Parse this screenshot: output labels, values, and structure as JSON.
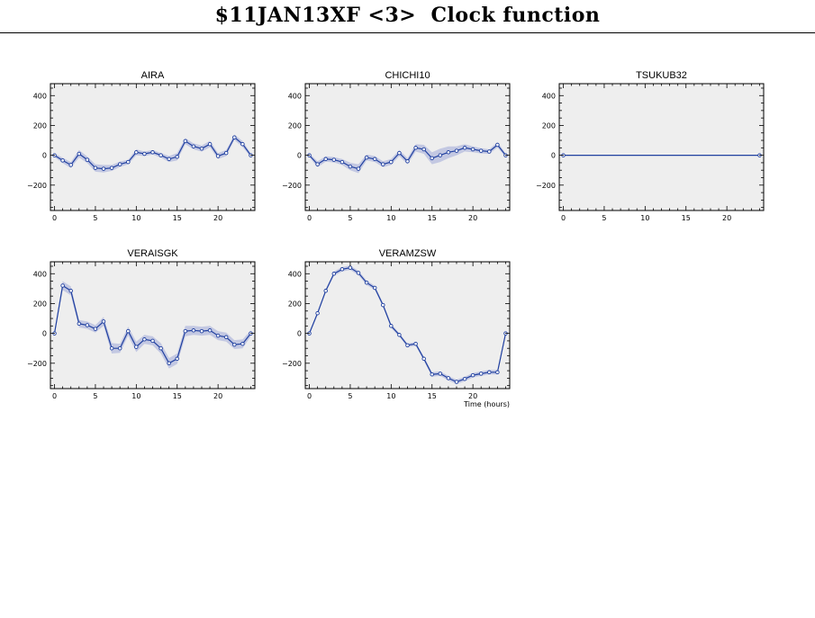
{
  "header": {
    "title": "$11JAN13XF <3>  Clock function"
  },
  "colors": {
    "line": "#2040a0",
    "band": "#c3c8e2",
    "background": "#eeeeee",
    "axis": "#000000"
  },
  "chart_data": [
    {
      "type": "line",
      "title": "AIRA",
      "xlabel": "",
      "ylabel": "",
      "xlim": [
        -0.5,
        24.5
      ],
      "ylim": [
        -370,
        480
      ],
      "xticks": [
        0,
        5,
        10,
        15,
        20
      ],
      "yticks": [
        -200,
        0,
        200,
        400
      ],
      "series": [
        {
          "x": [
            0,
            1,
            2,
            3,
            4,
            5,
            6,
            7,
            8,
            9,
            10,
            11,
            12,
            13,
            14,
            15,
            16,
            17,
            18,
            19,
            20,
            21,
            22,
            23,
            24
          ],
          "y": [
            0,
            -35,
            -65,
            10,
            -30,
            -85,
            -90,
            -85,
            -60,
            -45,
            20,
            10,
            20,
            0,
            -25,
            -10,
            95,
            60,
            45,
            75,
            -5,
            15,
            120,
            75,
            0
          ],
          "err": [
            12,
            18,
            20,
            25,
            22,
            25,
            25,
            20,
            18,
            15,
            20,
            15,
            15,
            15,
            20,
            25,
            20,
            20,
            20,
            22,
            20,
            20,
            18,
            20,
            12
          ]
        }
      ]
    },
    {
      "type": "line",
      "title": "CHICHI10",
      "xlabel": "",
      "ylabel": "",
      "xlim": [
        -0.5,
        24.5
      ],
      "ylim": [
        -370,
        480
      ],
      "xticks": [
        0,
        5,
        10,
        15,
        20
      ],
      "yticks": [
        -200,
        0,
        200,
        400
      ],
      "series": [
        {
          "x": [
            0,
            1,
            2,
            3,
            4,
            5,
            6,
            7,
            8,
            9,
            10,
            11,
            12,
            13,
            14,
            15,
            16,
            17,
            18,
            19,
            20,
            21,
            22,
            23,
            24
          ],
          "y": [
            0,
            -60,
            -25,
            -30,
            -45,
            -75,
            -90,
            -15,
            -25,
            -60,
            -45,
            15,
            -40,
            50,
            40,
            -20,
            0,
            20,
            30,
            50,
            40,
            30,
            25,
            70,
            0
          ],
          "err": [
            12,
            20,
            18,
            18,
            20,
            25,
            30,
            20,
            20,
            20,
            20,
            20,
            20,
            25,
            30,
            40,
            45,
            40,
            30,
            25,
            20,
            18,
            15,
            18,
            12
          ]
        }
      ]
    },
    {
      "type": "line",
      "title": "TSUKUB32",
      "xlabel": "",
      "ylabel": "",
      "xlim": [
        -0.5,
        24.5
      ],
      "ylim": [
        -370,
        480
      ],
      "xticks": [
        0,
        5,
        10,
        15,
        20
      ],
      "yticks": [
        -200,
        0,
        200,
        400
      ],
      "series": [
        {
          "x": [
            0,
            24
          ],
          "y": [
            0,
            0
          ],
          "err": [
            0,
            0
          ]
        }
      ]
    },
    {
      "type": "line",
      "title": "VERAISGK",
      "xlabel": "",
      "ylabel": "",
      "xlim": [
        -0.5,
        24.5
      ],
      "ylim": [
        -370,
        480
      ],
      "xticks": [
        0,
        5,
        10,
        15,
        20
      ],
      "yticks": [
        -200,
        0,
        200,
        400
      ],
      "series": [
        {
          "x": [
            0,
            1,
            2,
            3,
            4,
            5,
            6,
            7,
            8,
            9,
            10,
            11,
            12,
            13,
            14,
            15,
            16,
            17,
            18,
            19,
            20,
            21,
            22,
            23,
            24
          ],
          "y": [
            0,
            320,
            285,
            65,
            55,
            30,
            80,
            -100,
            -100,
            15,
            -90,
            -40,
            -50,
            -100,
            -200,
            -170,
            15,
            20,
            15,
            20,
            -15,
            -25,
            -75,
            -70,
            0
          ],
          "err": [
            15,
            30,
            30,
            25,
            25,
            25,
            30,
            35,
            30,
            30,
            35,
            30,
            30,
            35,
            35,
            35,
            35,
            30,
            30,
            30,
            30,
            30,
            30,
            30,
            20
          ]
        }
      ]
    },
    {
      "type": "line",
      "title": "VERAMZSW",
      "xlabel": "Time (hours)",
      "ylabel": "",
      "xlim": [
        -0.5,
        24.5
      ],
      "ylim": [
        -370,
        480
      ],
      "xticks": [
        0,
        5,
        10,
        15,
        20
      ],
      "yticks": [
        -200,
        0,
        200,
        400
      ],
      "series": [
        {
          "x": [
            0,
            1,
            2,
            3,
            4,
            5,
            6,
            7,
            8,
            9,
            10,
            11,
            12,
            13,
            14,
            15,
            16,
            17,
            18,
            19,
            20,
            21,
            22,
            23,
            24
          ],
          "y": [
            0,
            135,
            285,
            400,
            430,
            440,
            405,
            340,
            305,
            190,
            50,
            -10,
            -80,
            -70,
            -170,
            -275,
            -270,
            -300,
            -325,
            -305,
            -280,
            -270,
            -260,
            -260,
            0
          ],
          "err": [
            10,
            12,
            12,
            14,
            15,
            15,
            15,
            15,
            14,
            14,
            14,
            12,
            12,
            12,
            14,
            15,
            15,
            15,
            15,
            15,
            15,
            15,
            15,
            15,
            10
          ]
        }
      ]
    }
  ]
}
